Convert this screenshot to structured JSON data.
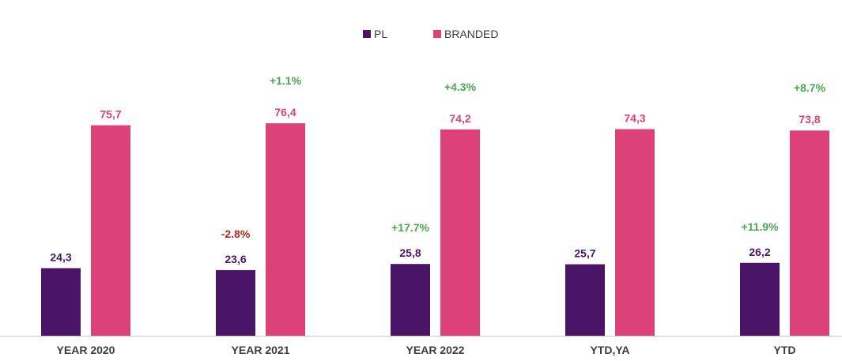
{
  "chart_data": {
    "type": "bar",
    "categories": [
      "YEAR 2020",
      "YEAR 2021",
      "YEAR 2022",
      "YTD,YA",
      "YTD"
    ],
    "series": [
      {
        "name": "PL",
        "values": [
          24.3,
          23.6,
          25.8,
          25.7,
          26.2
        ],
        "labels": [
          "24,3",
          "23,6",
          "25,8",
          "25,7",
          "26,2"
        ],
        "changes": [
          "",
          "-2.8%",
          "+17.7%",
          "",
          "+11.9%"
        ],
        "color": "#4a1566"
      },
      {
        "name": "BRANDED",
        "values": [
          75.7,
          76.4,
          74.2,
          74.3,
          73.8
        ],
        "labels": [
          "75,7",
          "76,4",
          "74,2",
          "74,3",
          "73,8"
        ],
        "changes": [
          "",
          "+1.1%",
          "+4.3%",
          "",
          "+8.7%"
        ],
        "color": "#dc4178"
      }
    ],
    "legend_position": "top-center",
    "grid": false,
    "ylim": [
      0,
      100
    ],
    "colors": {
      "positive_change": "#4aa84f",
      "negative_change": "#b22a1c",
      "axis": "#c8c8c8"
    }
  }
}
